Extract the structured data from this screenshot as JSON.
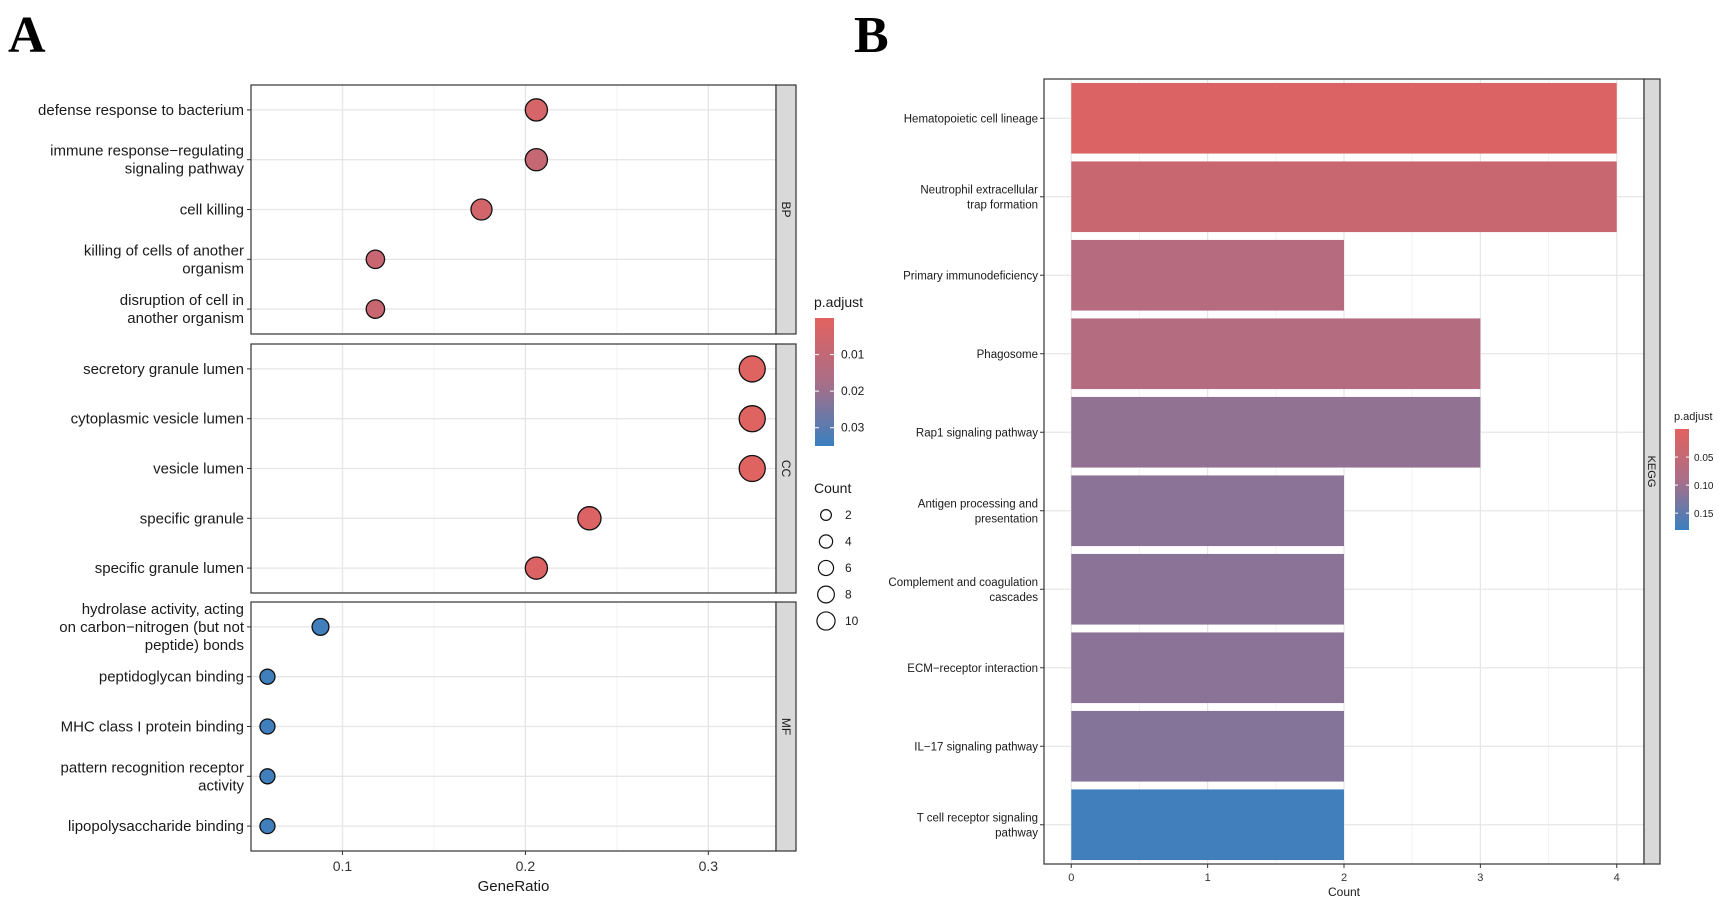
{
  "panels": {
    "a_letter": "A",
    "b_letter": "B"
  },
  "chart_data": [
    {
      "type": "scatter",
      "title": "",
      "xlabel": "GeneRatio",
      "ylabel": "",
      "xlim": [
        0.05,
        0.337
      ],
      "xticks": [
        "0.1",
        "0.2",
        "0.3"
      ],
      "xtick_values": [
        0.1,
        0.2,
        0.3
      ],
      "grid": true,
      "facets": [
        {
          "name": "BP",
          "points": [
            {
              "label": [
                "defense response to bacterium"
              ],
              "gene_ratio": 0.206,
              "count": 7,
              "p_adjust": 0.004
            },
            {
              "label": [
                "immune response−regulating",
                "signaling pathway"
              ],
              "gene_ratio": 0.206,
              "count": 7,
              "p_adjust": 0.009
            },
            {
              "label": [
                "cell killing"
              ],
              "gene_ratio": 0.176,
              "count": 6,
              "p_adjust": 0.005
            },
            {
              "label": [
                "killing of cells of another",
                "organism"
              ],
              "gene_ratio": 0.118,
              "count": 4,
              "p_adjust": 0.008
            },
            {
              "label": [
                "disruption of cell in",
                "another organism"
              ],
              "gene_ratio": 0.118,
              "count": 4,
              "p_adjust": 0.008
            }
          ]
        },
        {
          "name": "CC",
          "points": [
            {
              "label": [
                "secretory granule lumen"
              ],
              "gene_ratio": 0.324,
              "count": 11,
              "p_adjust": 0.001
            },
            {
              "label": [
                "cytoplasmic vesicle lumen"
              ],
              "gene_ratio": 0.324,
              "count": 11,
              "p_adjust": 0.001
            },
            {
              "label": [
                "vesicle lumen"
              ],
              "gene_ratio": 0.324,
              "count": 11,
              "p_adjust": 0.001
            },
            {
              "label": [
                "specific granule"
              ],
              "gene_ratio": 0.235,
              "count": 8,
              "p_adjust": 0.002
            },
            {
              "label": [
                "specific granule lumen"
              ],
              "gene_ratio": 0.206,
              "count": 7,
              "p_adjust": 0.002
            }
          ]
        },
        {
          "name": "MF",
          "points": [
            {
              "label": [
                "hydrolase activity, acting",
                "on carbon−nitrogen (but not",
                "peptide) bonds"
              ],
              "gene_ratio": 0.088,
              "count": 3,
              "p_adjust": 0.034
            },
            {
              "label": [
                "peptidoglycan binding"
              ],
              "gene_ratio": 0.059,
              "count": 2,
              "p_adjust": 0.034
            },
            {
              "label": [
                "MHC class I protein binding"
              ],
              "gene_ratio": 0.059,
              "count": 2,
              "p_adjust": 0.034
            },
            {
              "label": [
                "pattern recognition receptor",
                "activity"
              ],
              "gene_ratio": 0.059,
              "count": 2,
              "p_adjust": 0.034
            },
            {
              "label": [
                "lipopolysaccharide binding"
              ],
              "gene_ratio": 0.059,
              "count": 2,
              "p_adjust": 0.034
            }
          ]
        }
      ],
      "color_legend": {
        "title": "p.adjust",
        "range": [
          0.0,
          0.035
        ],
        "ticks": [
          "0.01",
          "0.02",
          "0.03"
        ],
        "tick_values": [
          0.01,
          0.02,
          0.03
        ],
        "low_color": "#e2625f",
        "high_color": "#3a7fbf"
      },
      "size_legend": {
        "title": "Count",
        "values": [
          "2",
          "4",
          "6",
          "8",
          "10"
        ]
      }
    },
    {
      "type": "bar",
      "orientation": "horizontal",
      "xlabel": "Count",
      "ylabel": "",
      "xlim": [
        -0.2,
        4.2
      ],
      "xticks": [
        "0",
        "1",
        "2",
        "3",
        "4"
      ],
      "facet": "KEGG",
      "grid": true,
      "categories": [
        [
          "Hematopoietic cell lineage"
        ],
        [
          "Neutrophil extracellular",
          "trap formation"
        ],
        [
          "Primary immunodeficiency"
        ],
        [
          "Phagosome"
        ],
        [
          "Rap1 signaling pathway"
        ],
        [
          "Antigen processing and",
          "presentation"
        ],
        [
          "Complement and coagulation",
          "cascades"
        ],
        [
          "ECM−receptor interaction"
        ],
        [
          "IL−17 signaling pathway"
        ],
        [
          "T cell receptor signaling",
          "pathway"
        ]
      ],
      "values": [
        4,
        4,
        2,
        3,
        3,
        2,
        2,
        2,
        2,
        2
      ],
      "p_adjust": [
        0.01,
        0.04,
        0.07,
        0.075,
        0.11,
        0.115,
        0.115,
        0.115,
        0.12,
        0.175
      ],
      "color_legend": {
        "title": "p.adjust",
        "range": [
          0.0,
          0.18
        ],
        "ticks": [
          "0.05",
          "0.10",
          "0.15"
        ],
        "tick_values": [
          0.05,
          0.1,
          0.15
        ],
        "low_color": "#e2625f",
        "high_color": "#3a7fbf"
      }
    }
  ]
}
